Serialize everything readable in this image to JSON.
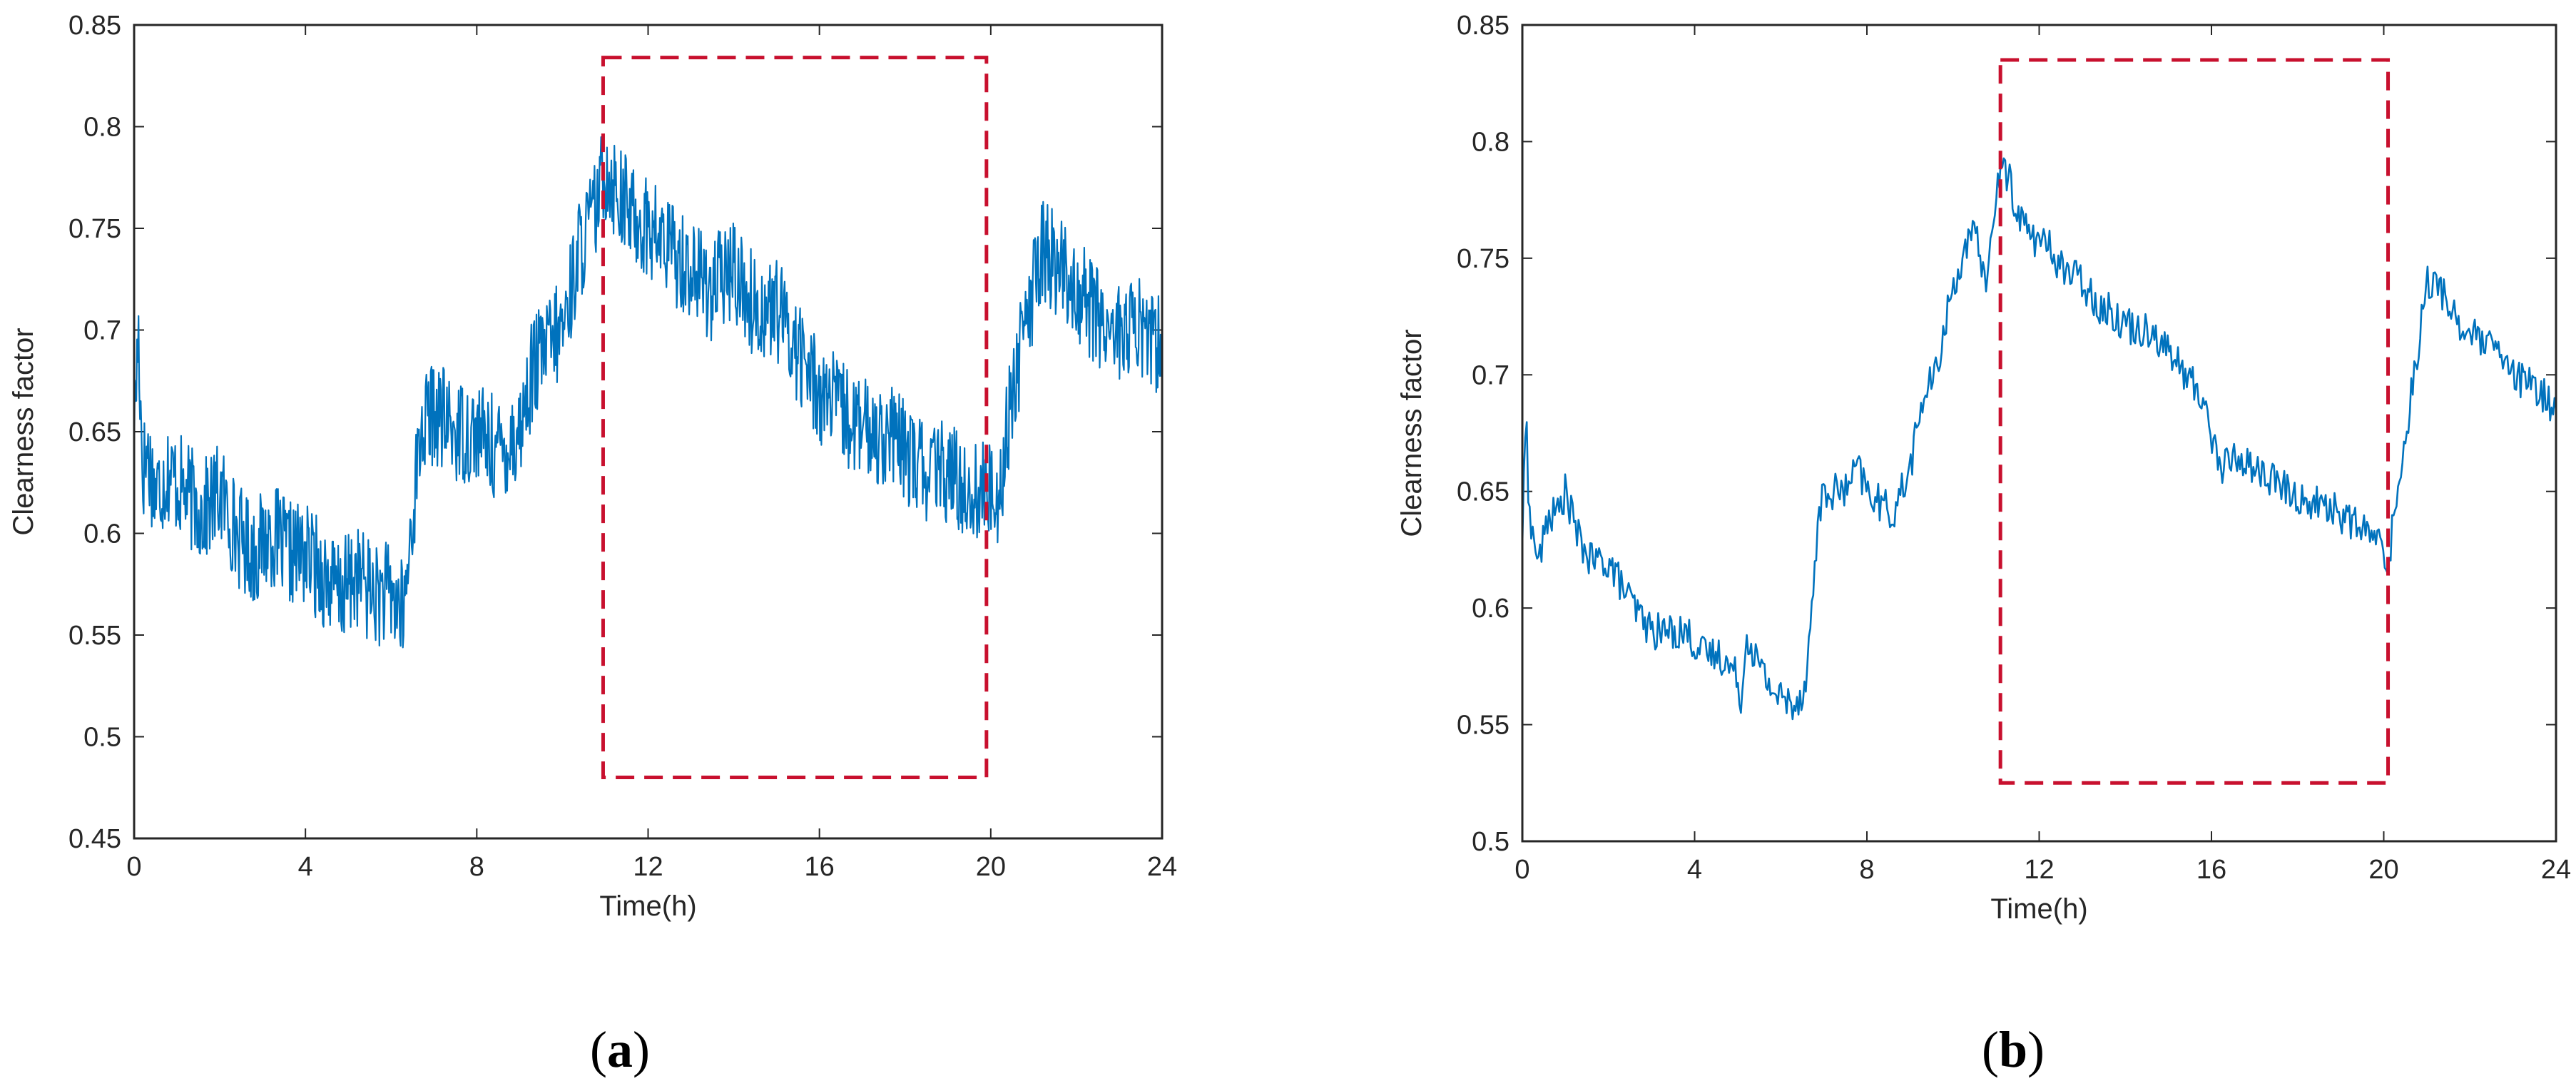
{
  "figure": {
    "panel_labels": [
      {
        "open": "(",
        "letter": "a",
        "close": ")"
      },
      {
        "open": "(",
        "letter": "b",
        "close": ")"
      }
    ]
  },
  "chart_data": [
    {
      "type": "line",
      "xlabel": "Time(h)",
      "ylabel": "Clearness factor",
      "xlim": [
        0,
        24
      ],
      "ylim": [
        0.45,
        0.85
      ],
      "xticks": [
        0,
        4,
        8,
        12,
        16,
        20,
        24
      ],
      "xtick_labels": [
        "0",
        "4",
        "8",
        "12",
        "16",
        "20",
        "24"
      ],
      "yticks": [
        0.45,
        0.5,
        0.55,
        0.6,
        0.65,
        0.7,
        0.75,
        0.8,
        0.85
      ],
      "ytick_labels": [
        "0.45",
        "0.5",
        "0.55",
        "0.6",
        "0.65",
        "0.7",
        "0.75",
        "0.8",
        "0.85"
      ],
      "grid": false,
      "line_color": "#0072bd",
      "highlight_color": "#c8102e",
      "highlight_box": {
        "x": [
          10.95,
          19.9
        ],
        "y": [
          0.48,
          0.834
        ]
      },
      "series": [
        {
          "x": [
            0,
            0.1,
            0.2,
            0.3,
            0.5,
            0.8,
            1.2,
            1.6,
            2.0,
            2.4,
            2.8,
            3.2,
            3.6,
            4.0,
            4.4,
            4.8,
            5.2,
            5.6,
            6.0,
            6.3,
            6.5,
            6.7,
            7.0,
            7.5,
            8.0,
            8.5,
            9.0,
            9.3,
            9.6,
            10.0,
            10.4,
            10.8,
            11.0,
            11.5,
            12.0,
            12.5,
            13.0,
            13.5,
            14.0,
            14.5,
            15.0,
            15.5,
            16.0,
            16.5,
            17.0,
            17.5,
            18.0,
            18.5,
            19.0,
            19.5,
            19.9,
            20.2,
            20.5,
            20.8,
            21.2,
            21.6,
            22.0,
            22.4,
            22.8,
            23.2,
            23.6,
            24.0
          ],
          "y": [
            0.65,
            0.7,
            0.63,
            0.64,
            0.62,
            0.63,
            0.62,
            0.61,
            0.62,
            0.6,
            0.59,
            0.6,
            0.59,
            0.59,
            0.58,
            0.57,
            0.58,
            0.57,
            0.57,
            0.56,
            0.61,
            0.65,
            0.66,
            0.65,
            0.65,
            0.64,
            0.65,
            0.68,
            0.69,
            0.7,
            0.74,
            0.76,
            0.78,
            0.76,
            0.75,
            0.74,
            0.73,
            0.72,
            0.73,
            0.71,
            0.71,
            0.69,
            0.67,
            0.66,
            0.65,
            0.65,
            0.64,
            0.63,
            0.63,
            0.62,
            0.62,
            0.62,
            0.67,
            0.7,
            0.74,
            0.73,
            0.72,
            0.71,
            0.7,
            0.7,
            0.7,
            0.69
          ]
        }
      ]
    },
    {
      "type": "line",
      "xlabel": "Time(h)",
      "ylabel": "Clearness factor",
      "xlim": [
        0,
        24
      ],
      "ylim": [
        0.5,
        0.85
      ],
      "xticks": [
        0,
        4,
        8,
        12,
        16,
        20,
        24
      ],
      "xtick_labels": [
        "0",
        "4",
        "8",
        "12",
        "16",
        "20",
        "24"
      ],
      "yticks": [
        0.5,
        0.55,
        0.6,
        0.65,
        0.7,
        0.75,
        0.8,
        0.85
      ],
      "ytick_labels": [
        "0.5",
        "0.55",
        "0.6",
        "0.65",
        "0.7",
        "0.75",
        "0.8",
        "0.85"
      ],
      "grid": false,
      "line_color": "#0072bd",
      "highlight_color": "#c8102e",
      "highlight_box": {
        "x": [
          11.1,
          20.1
        ],
        "y": [
          0.525,
          0.835
        ]
      },
      "series": [
        {
          "x": [
            0,
            0.1,
            0.15,
            0.25,
            0.4,
            0.6,
            0.8,
            1.0,
            1.3,
            1.6,
            2.0,
            2.3,
            2.6,
            3.0,
            3.4,
            3.8,
            4.2,
            4.6,
            5.0,
            5.1,
            5.2,
            5.5,
            5.8,
            6.1,
            6.4,
            6.6,
            6.9,
            7.2,
            7.5,
            7.8,
            8.0,
            8.3,
            8.6,
            9.0,
            9.3,
            9.6,
            9.9,
            10.2,
            10.5,
            10.8,
            11.0,
            11.2,
            11.5,
            11.8,
            12.2,
            12.6,
            13.0,
            13.4,
            13.8,
            14.2,
            14.6,
            15.0,
            15.4,
            15.8,
            16.2,
            16.6,
            17.0,
            17.4,
            17.8,
            18.2,
            18.6,
            19.0,
            19.4,
            19.8,
            20.1,
            20.4,
            20.7,
            21.0,
            21.4,
            21.8,
            22.2,
            22.6,
            23.0,
            23.4,
            23.8,
            24.0
          ],
          "y": [
            0.63,
            0.69,
            0.64,
            0.63,
            0.62,
            0.64,
            0.64,
            0.65,
            0.63,
            0.62,
            0.62,
            0.61,
            0.6,
            0.59,
            0.59,
            0.59,
            0.58,
            0.58,
            0.57,
            0.56,
            0.59,
            0.575,
            0.565,
            0.56,
            0.56,
            0.57,
            0.645,
            0.65,
            0.65,
            0.66,
            0.65,
            0.645,
            0.64,
            0.66,
            0.69,
            0.7,
            0.73,
            0.75,
            0.76,
            0.74,
            0.78,
            0.79,
            0.77,
            0.76,
            0.755,
            0.745,
            0.74,
            0.73,
            0.725,
            0.72,
            0.72,
            0.71,
            0.7,
            0.69,
            0.66,
            0.665,
            0.66,
            0.655,
            0.65,
            0.645,
            0.645,
            0.64,
            0.635,
            0.63,
            0.62,
            0.66,
            0.7,
            0.74,
            0.735,
            0.72,
            0.715,
            0.71,
            0.7,
            0.695,
            0.69,
            0.685
          ]
        }
      ]
    }
  ]
}
